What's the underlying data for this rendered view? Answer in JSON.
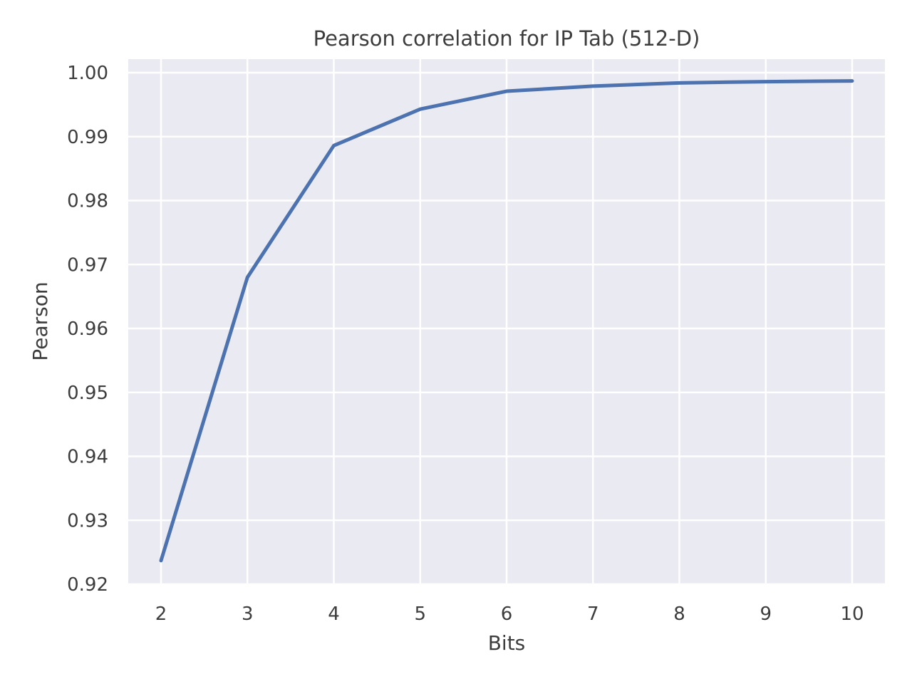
{
  "chart_data": {
    "type": "line",
    "title": "Pearson correlation for IP Tab (512-D)",
    "xlabel": "Bits",
    "ylabel": "Pearson",
    "x": [
      2,
      3,
      4,
      5,
      6,
      7,
      8,
      9,
      10
    ],
    "xticks": [
      "2",
      "3",
      "4",
      "5",
      "6",
      "7",
      "8",
      "9",
      "10"
    ],
    "yticks": [
      "0.92",
      "0.93",
      "0.94",
      "0.95",
      "0.96",
      "0.97",
      "0.98",
      "0.99",
      "1.00"
    ],
    "ylim": [
      0.92,
      1.0
    ],
    "grid": true,
    "series": [
      {
        "name": "Pearson",
        "color": "#4c72b0",
        "values": [
          0.9237,
          0.968,
          0.9886,
          0.9943,
          0.9971,
          0.9979,
          0.9984,
          0.9986,
          0.9987
        ]
      }
    ]
  }
}
